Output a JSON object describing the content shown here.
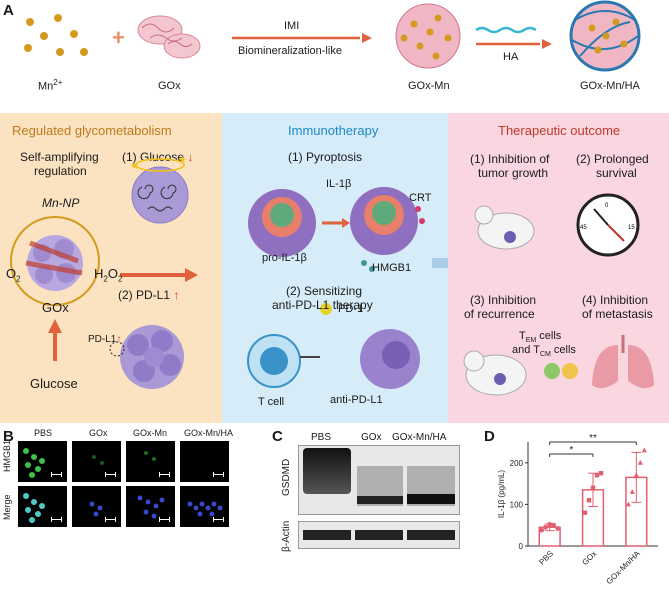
{
  "panel_a": {
    "letter": "A",
    "reagents": {
      "mn": "Mn",
      "mn_sup": "2+",
      "gox": "GOx",
      "gox_mn": "GOx-Mn",
      "gox_mn_ha": "GOx-Mn/HA",
      "ha": "HA"
    },
    "arrow1": {
      "top": "IMI",
      "bottom": "Biomineralization-like"
    },
    "sections": {
      "left": {
        "title": "Regulated glycometabolism",
        "subtitle_1": "Self-amplifying",
        "subtitle_2": "regulation",
        "item1_prefix": "(1) Glucose",
        "item2_prefix": "(2) PD-L1",
        "mn_np": "Mn-NP",
        "o2": "O",
        "o2_sub": "2",
        "h2o2_a": "H",
        "h2o2_sub1": "2",
        "h2o2_b": "O",
        "h2o2_sub2": "2",
        "gox": "GOx",
        "glucose": "Glucose",
        "pdl1": "PD-L1"
      },
      "middle": {
        "title": "Immunotherapy",
        "item1": "(1) Pyroptosis",
        "il1b": "IL-1β",
        "crt": "CRT",
        "pro_il1b": "pro-IL-1β",
        "hmgb1": "HMGB1",
        "item2_line1": "(2) Sensitizing",
        "item2_line2": "anti-PD-L1 therapy",
        "pd1": "PD-1",
        "tcell": "T cell",
        "anti_pdl1": "anti-PD-L1"
      },
      "right": {
        "title": "Therapeutic outcome",
        "o1_line1": "(1) Inhibition of",
        "o1_line2": "tumor growth",
        "o2_line1": "(2) Prolonged",
        "o2_line2": "survival",
        "o3_line1": "(3) Inhibition",
        "o3_line2": "of recurrence",
        "o4_line1": "(4) Inhibition",
        "o4_line2": "of metastasis",
        "tem_line": "and T",
        "tem_t": "T",
        "tem_sub": "EM",
        "tem_suffix": " cells",
        "tcm_sub": "CM",
        "tcm_suffix": " cells",
        "compass_0": "0",
        "compass_15": "15",
        "compass_45": "45"
      }
    },
    "colors": {
      "left_bg": "#fbe3c1",
      "middle_bg": "#d6ecf8",
      "right_bg": "#f9d6e0",
      "left_title": "#c07a1a",
      "middle_title": "#1e88c8",
      "right_title": "#c0392b"
    }
  },
  "panel_b": {
    "letter": "B",
    "columns": [
      "PBS",
      "GOx",
      "GOx-Mn",
      "GOx-Mn/HA"
    ],
    "rows": [
      "HMGB1",
      "Merge"
    ]
  },
  "panel_c": {
    "letter": "C",
    "columns": [
      "PBS",
      "GOx",
      "GOx-Mn/HA"
    ],
    "rows": [
      "GSDMD",
      "β-Actin"
    ]
  },
  "panel_d": {
    "letter": "D"
  },
  "chart_data": {
    "type": "bar",
    "categories": [
      "PBS",
      "GOx",
      "GOx-Mn/HA"
    ],
    "values": [
      45,
      135,
      165
    ],
    "errors": [
      8,
      40,
      60
    ],
    "points": [
      [
        38,
        45,
        52,
        50,
        42
      ],
      [
        80,
        110,
        140,
        170,
        175
      ],
      [
        100,
        130,
        170,
        200,
        230
      ]
    ],
    "ylabel": "IL-1β (pg/mL)",
    "xlabel": "",
    "ylim": [
      0,
      250
    ],
    "yticks": [
      0,
      100,
      200
    ],
    "significance": [
      {
        "from": 0,
        "to": 1,
        "label": "*"
      },
      {
        "from": 0,
        "to": 2,
        "label": "**"
      }
    ],
    "color": "#e06070"
  }
}
